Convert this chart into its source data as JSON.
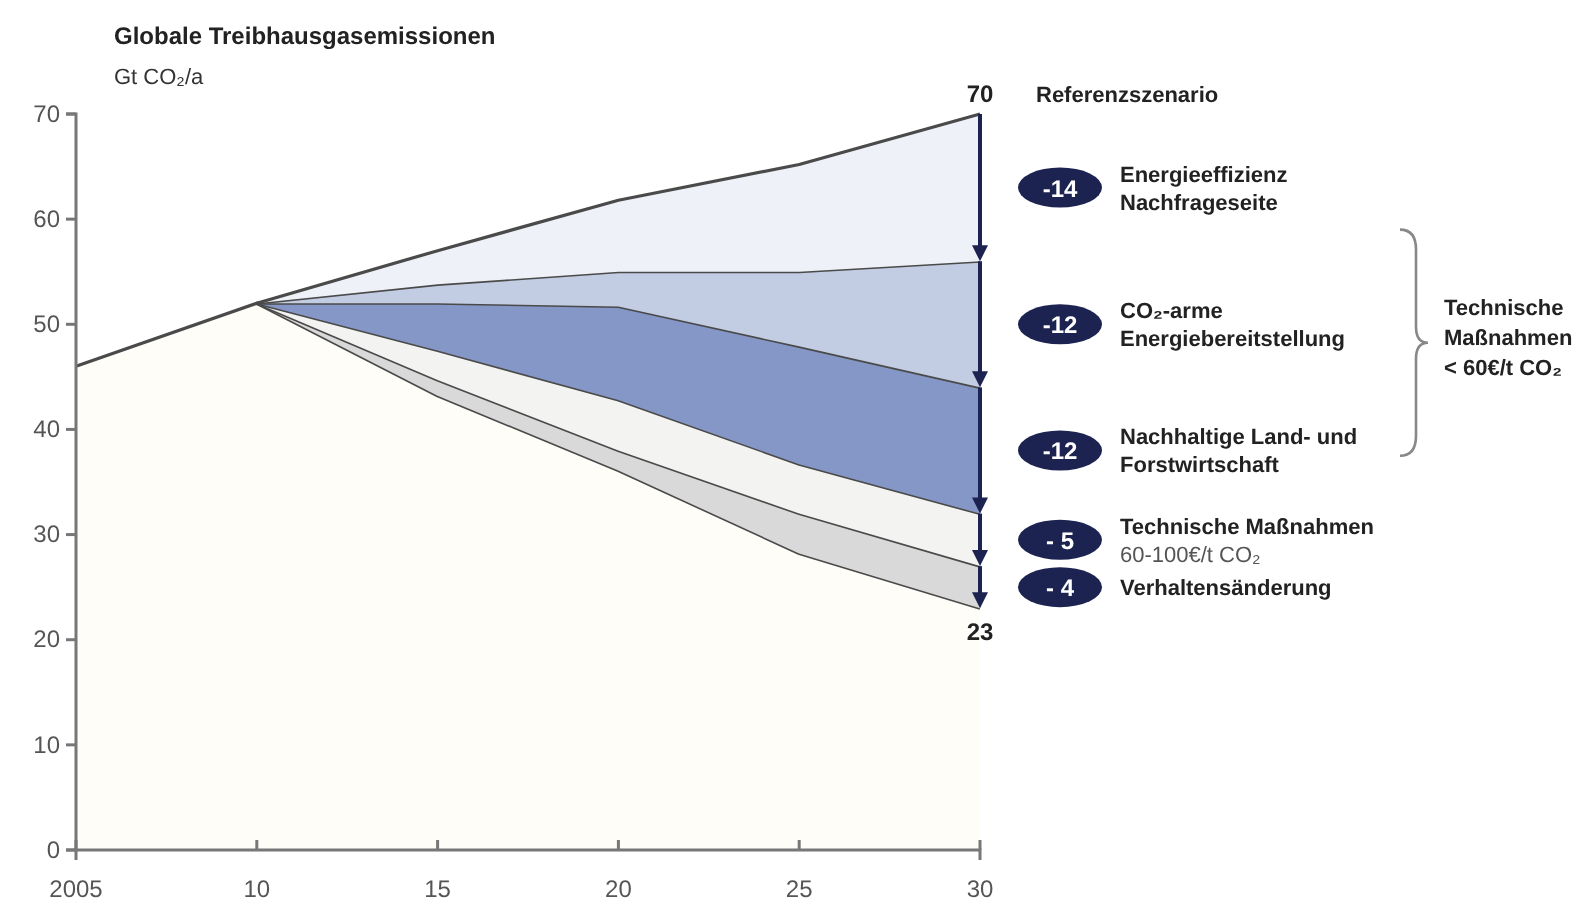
{
  "chart_data": {
    "type": "area",
    "stacked": true,
    "title": "Globale Treibhausgasemissionen",
    "ylabel": "Gt CO₂/a",
    "x": [
      2005,
      2010,
      2015,
      2020,
      2025,
      2030
    ],
    "xlim": [
      2005,
      2030
    ],
    "xticks": [
      2005,
      {
        "value": 2010,
        "label": "10"
      },
      {
        "value": 2015,
        "label": "15"
      },
      {
        "value": 2020,
        "label": "20"
      },
      {
        "value": 2025,
        "label": "25"
      },
      {
        "value": 2030,
        "label": "30"
      }
    ],
    "ylim": [
      0,
      70
    ],
    "yticks": [
      0,
      10,
      20,
      30,
      40,
      50,
      60,
      70
    ],
    "grid": false,
    "totals": [
      null,
      null,
      null,
      null,
      null,
      "70"
    ],
    "series": [
      {
        "color": "#fffdf8",
        "values": [
          46,
          52,
          43.2,
          36.1,
          28.2,
          23
        ],
        "value_labels": [
          null,
          null,
          null,
          null,
          null,
          "23"
        ]
      },
      {
        "name": "Verhaltensänderung",
        "color": "#d9d9d9",
        "values": [
          null,
          0,
          1.5,
          1.9,
          3.8,
          4
        ]
      },
      {
        "name": "Technische Maßnahmen\n60-100€/t CO₂",
        "color": "#f3f3f1",
        "values": [
          null,
          0,
          2.8,
          4.8,
          4.7,
          5
        ]
      },
      {
        "name": "Nachhaltige Land- und\nForstwirtschaft",
        "color": "#8597c6",
        "values": [
          null,
          0,
          4.5,
          8.9,
          11.2,
          12
        ]
      },
      {
        "name": "CO₂-arme\nEnergiebereitstellung",
        "color": "#c2cde3",
        "values": [
          null,
          0,
          1.8,
          3.3,
          7.1,
          12
        ]
      },
      {
        "name": "Energieeffizienz\nNachfrageseite",
        "color": "#eef1f8",
        "values": [
          null,
          0,
          3.2,
          6.8,
          10.2,
          14
        ]
      }
    ],
    "annotations": [
      "Referenzszenario",
      "- 4",
      "- 5",
      "-12",
      "-12",
      "-14",
      "Technische\nMaßnahmen\n< 60€/t CO₂"
    ]
  }
}
